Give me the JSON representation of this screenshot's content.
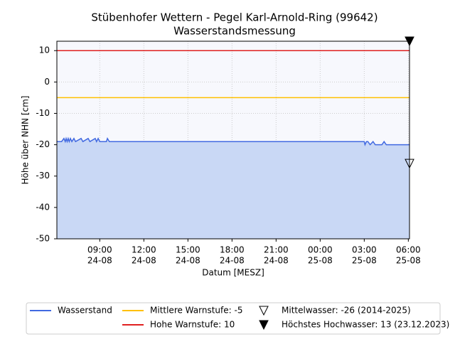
{
  "chart_data": {
    "type": "line",
    "title": "Stübenhofer Wettern - Pegel Karl-Arnold-Ring (99642)",
    "subtitle": "Wasserstandsmessung",
    "xlabel": "Datum [MESZ]",
    "ylabel": "Höhe über NHN [cm]",
    "xlim": [
      6.08,
      30.08
    ],
    "ylim": [
      -50,
      13
    ],
    "yticks": [
      -50,
      -40,
      -30,
      -20,
      -10,
      0,
      10
    ],
    "xticks": [
      {
        "value": 9,
        "label": "09:00",
        "sublabel": "24-08"
      },
      {
        "value": 12,
        "label": "12:00",
        "sublabel": "24-08"
      },
      {
        "value": 15,
        "label": "15:00",
        "sublabel": "24-08"
      },
      {
        "value": 18,
        "label": "18:00",
        "sublabel": "24-08"
      },
      {
        "value": 21,
        "label": "21:00",
        "sublabel": "24-08"
      },
      {
        "value": 24,
        "label": "00:00",
        "sublabel": "25-08"
      },
      {
        "value": 27,
        "label": "03:00",
        "sublabel": "25-08"
      },
      {
        "value": 30,
        "label": "06:00",
        "sublabel": "25-08"
      }
    ],
    "grid": true,
    "series": [
      {
        "name": "Wasserstand",
        "color": "#4169e1",
        "fill": "#c9d8f5",
        "x": [
          6.08,
          6.4,
          6.56,
          6.65,
          6.71,
          6.78,
          6.85,
          6.92,
          7.0,
          7.1,
          7.24,
          7.35,
          7.73,
          7.85,
          8.21,
          8.33,
          8.69,
          8.78,
          8.89,
          9.0,
          9.45,
          9.52,
          9.65,
          27.0,
          27.05,
          27.15,
          27.25,
          27.4,
          27.6,
          27.75,
          27.9,
          28.2,
          28.35,
          28.5,
          29.0,
          30.08
        ],
        "values": [
          -19,
          -19,
          -18,
          -19,
          -18,
          -19,
          -18,
          -19,
          -18,
          -19,
          -18,
          -19,
          -18,
          -19,
          -18,
          -19,
          -18,
          -19,
          -18,
          -19,
          -19,
          -18,
          -19,
          -19,
          -20,
          -19,
          -19,
          -20,
          -19,
          -20,
          -20,
          -20,
          -19,
          -20,
          -20,
          -20
        ]
      }
    ],
    "hlines": [
      {
        "name": "Mittlere Warnstufe: -5",
        "value": -5,
        "color": "#ffc000"
      },
      {
        "name": "Hohe Warnstufe: 10",
        "value": 10,
        "color": "#e02020"
      }
    ],
    "markers": [
      {
        "name": "Mittelwasser: -26 (2014-2025)",
        "x": 30.08,
        "value": -26,
        "filled": false
      },
      {
        "name": "Höchstes Hochwasser: 13 (23.12.2023)",
        "x": 30.08,
        "value": 13,
        "filled": true
      }
    ]
  }
}
